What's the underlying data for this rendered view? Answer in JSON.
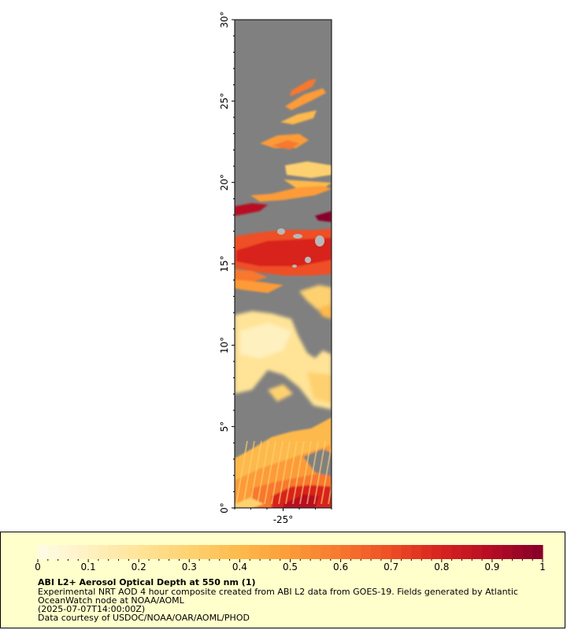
{
  "map": {
    "lat_axis": {
      "ticks": [
        {
          "value": 0,
          "label": "0°"
        },
        {
          "value": 5,
          "label": "5°"
        },
        {
          "value": 10,
          "label": "10°"
        },
        {
          "value": 15,
          "label": "15°"
        },
        {
          "value": 20,
          "label": "20°"
        },
        {
          "value": 25,
          "label": "25°"
        },
        {
          "value": 30,
          "label": "30°"
        }
      ],
      "range": [
        0,
        30
      ]
    },
    "lon_axis": {
      "ticks": [
        {
          "value": -25,
          "label": "-25°"
        }
      ],
      "range": [
        -28,
        -22
      ]
    },
    "colors": {
      "background": "#808080",
      "nodata_clouds": "#b8b8b8"
    }
  },
  "colorbar": {
    "min": 0,
    "max": 1,
    "tick_labels": [
      "0",
      "0.1",
      "0.2",
      "0.3",
      "0.4",
      "0.5",
      "0.6",
      "0.7",
      "0.8",
      "0.9",
      "1"
    ],
    "tick_values": [
      0,
      0.1,
      0.2,
      0.3,
      0.4,
      0.5,
      0.6,
      0.7,
      0.8,
      0.9,
      1
    ],
    "colors": [
      "#fffbe3",
      "#fff0bf",
      "#ffe396",
      "#fed170",
      "#fdb94c",
      "#fc9b38",
      "#f7782f",
      "#ee4f26",
      "#d8241f",
      "#b80d24",
      "#8a0029"
    ]
  },
  "caption": {
    "title": "ABI L2+ Aerosol Optical Depth at 550 nm (1)",
    "line1": "Experimental NRT AOD 4 hour composite created from ABI L2 data from GOES-19. Fields generated by Atlantic",
    "line2": "OceanWatch node at NOAA/AOML",
    "line3": "(2025-07-07T14:00:00Z)",
    "line4": "Data courtesy of USDOC/NOAA/OAR/AOML/PHOD"
  }
}
